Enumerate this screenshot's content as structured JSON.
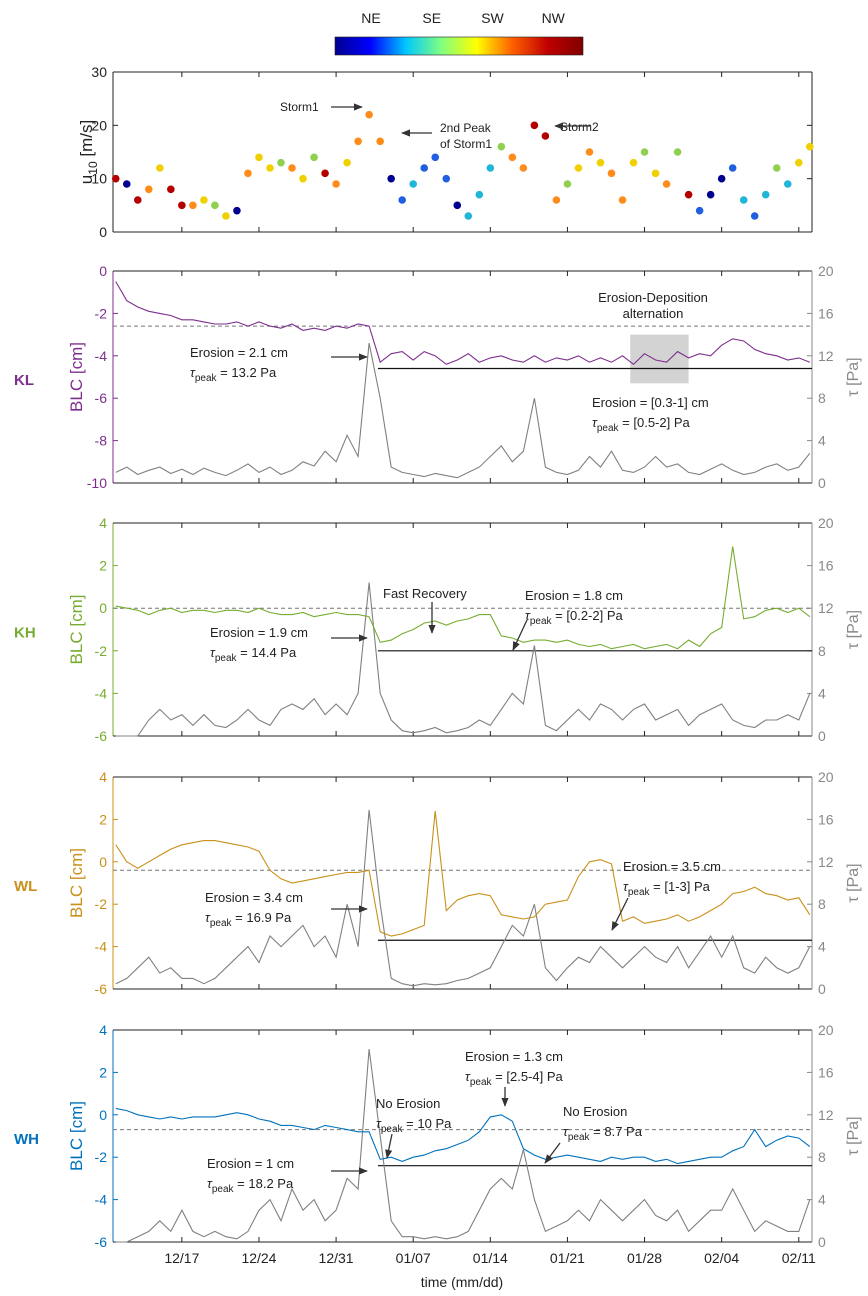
{
  "chart_data": {
    "type": "multi-panel",
    "colorbar": {
      "labels": [
        "NE",
        "SE",
        "SW",
        "NW"
      ],
      "colors": [
        "#00008f",
        "#0000ff",
        "#00c8ff",
        "#80ff80",
        "#ffff00",
        "#ff6000",
        "#c00000",
        "#800000"
      ]
    },
    "x": [
      11,
      12,
      13,
      14,
      15,
      16,
      17,
      18,
      19,
      20,
      21,
      22,
      23,
      24,
      25,
      26,
      27,
      28,
      29,
      30,
      31,
      32,
      33,
      34,
      35,
      36,
      37,
      38,
      39,
      40,
      41,
      42,
      43,
      44,
      45,
      46,
      47,
      48,
      49,
      50,
      51,
      52,
      53,
      54,
      55,
      56,
      57,
      58,
      59,
      60,
      61,
      62,
      63,
      64,
      65,
      66,
      67,
      68,
      69,
      70,
      71,
      72,
      73,
      74
    ],
    "xlim": [
      10.75,
      74.2
    ],
    "xticks": [
      {
        "value": 17,
        "label": "12/17"
      },
      {
        "value": 24,
        "label": "12/24"
      },
      {
        "value": 31,
        "label": "12/31"
      },
      {
        "value": 38,
        "label": "01/07"
      },
      {
        "value": 45,
        "label": "01/14"
      },
      {
        "value": 52,
        "label": "01/21"
      },
      {
        "value": 59,
        "label": "01/28"
      },
      {
        "value": 66,
        "label": "02/04"
      },
      {
        "value": 73,
        "label": "02/11"
      }
    ],
    "xlabel": "time (mm/dd)",
    "panels": [
      {
        "type": "scatter",
        "ylabel": "u",
        "ylabel_sub": "10",
        "ylabel_unit": " [m/s]",
        "ylim": [
          0,
          30
        ],
        "yticks": [
          0,
          10,
          20,
          30
        ],
        "values": [
          10,
          9,
          6,
          8,
          12,
          8,
          5,
          5,
          6,
          5,
          3,
          4,
          11,
          14,
          12,
          13,
          12,
          10,
          14,
          11,
          9,
          13,
          17,
          22,
          17,
          10,
          6,
          9,
          12,
          14,
          10,
          5,
          3,
          7,
          12,
          16,
          14,
          12,
          20,
          18,
          6,
          9,
          12,
          15,
          13,
          11,
          6,
          13,
          15,
          11,
          9,
          15,
          7,
          4,
          7,
          10,
          12,
          6,
          3,
          7,
          12,
          9,
          13,
          16
        ],
        "colors": [
          "#b40000",
          "#000090",
          "#b40000",
          "#ff8c1a",
          "#f0d000",
          "#b40000",
          "#b40000",
          "#ff8c1a",
          "#f0d000",
          "#8fd14f",
          "#f0d000",
          "#000090",
          "#ff8c1a",
          "#f0d000",
          "#f0d000",
          "#8fd14f",
          "#ff8c1a",
          "#f0d000",
          "#8fd14f",
          "#b40000",
          "#ff8c1a",
          "#f0d000",
          "#ff8c1a",
          "#ff8c1a",
          "#ff8c1a",
          "#000090",
          "#2060e0",
          "#20b6d8",
          "#2060e0",
          "#2060e0",
          "#2060e0",
          "#000090",
          "#20b6d8",
          "#20b6d8",
          "#20b6d8",
          "#8fd14f",
          "#ff8c1a",
          "#ff8c1a",
          "#b40000",
          "#b40000",
          "#ff8c1a",
          "#8fd14f",
          "#f0d000",
          "#ff8c1a",
          "#f0d000",
          "#ff8c1a",
          "#ff8c1a",
          "#f0d000",
          "#8fd14f",
          "#f0d000",
          "#ff8c1a",
          "#8fd14f",
          "#b40000",
          "#2060e0",
          "#000090",
          "#000090",
          "#2060e0",
          "#20b6d8",
          "#2060e0",
          "#20b6d8",
          "#8fd14f",
          "#20b6d8",
          "#f0d000",
          "#f0d000"
        ],
        "annotations": [
          {
            "lines": [
              "Storm1"
            ]
          },
          {
            "lines": [
              "2nd Peak",
              "of Storm1"
            ]
          },
          {
            "lines": [
              "Storm2"
            ]
          }
        ]
      },
      {
        "type": "line",
        "label": "KL",
        "color": "#7e2f8e",
        "ylabel": "BLC [cm]",
        "ylim": [
          -10,
          0
        ],
        "yticks": [
          -10,
          -8,
          -6,
          -4,
          -2,
          0
        ],
        "y2label": "τ [Pa]",
        "y2lim": [
          0,
          20
        ],
        "y2ticks": [
          0,
          4,
          8,
          12,
          16,
          20
        ],
        "ref_dashed": -2.6,
        "ref_solid": -4.6,
        "ref_solid_start": 34.8,
        "highlight": {
          "xlim": [
            57.7,
            63
          ],
          "ylim": [
            -5.3,
            -3
          ]
        },
        "series": [
          {
            "color": "#7e2f8e",
            "values": [
              -0.5,
              -1.4,
              -1.7,
              -1.9,
              -2.0,
              -2.1,
              -2.3,
              -2.3,
              -2.4,
              -2.5,
              -2.5,
              -2.4,
              -2.6,
              -2.4,
              -2.6,
              -2.7,
              -2.5,
              -2.8,
              -2.7,
              -2.8,
              -2.6,
              -2.7,
              -2.5,
              -2.6,
              -4.3,
              -3.9,
              -3.8,
              -4.2,
              -3.8,
              -4.0,
              -4.4,
              -4.2,
              -3.9,
              -4.3,
              -4.1,
              -4.0,
              -4.2,
              -4.3,
              -4.0,
              -4.3,
              -4.1,
              -4.2,
              -4.0,
              -4.3,
              -4.1,
              -4.3,
              -4.0,
              -4.4,
              -3.9,
              -4.2,
              -4.3,
              -3.8,
              -4.1,
              -3.9,
              -4.0,
              -3.5,
              -3.2,
              -3.3,
              -3.7,
              -3.9,
              -4.0,
              -4.2,
              -4.1,
              -4.3
            ]
          },
          {
            "color": "#808080",
            "axis": "y2",
            "values": [
              1,
              1.5,
              0.8,
              1.2,
              1.5,
              0.9,
              1.3,
              0.8,
              1.4,
              1.0,
              0.7,
              1.2,
              1.8,
              1.0,
              1.5,
              0.8,
              1.2,
              2.0,
              1.6,
              3.0,
              2.0,
              4.5,
              2.5,
              13.2,
              8.0,
              1.5,
              1.0,
              0.8,
              0.6,
              0.9,
              0.7,
              0.5,
              1.0,
              1.5,
              2.5,
              3.5,
              2.0,
              3.0,
              8.0,
              1.5,
              1.0,
              0.8,
              1.2,
              2.5,
              1.5,
              3.0,
              1.2,
              1.0,
              1.5,
              2.5,
              1.5,
              1.8,
              1.0,
              0.8,
              1.3,
              1.8,
              1.2,
              0.8,
              1.0,
              1.5,
              1.8,
              1.2,
              1.5,
              2.8
            ]
          }
        ],
        "annotations": [
          {
            "lines": [
              "Erosion = 2.1 cm"
            ],
            "tau": "τ",
            "sub": "peak",
            "rest": " = 13.2 Pa"
          },
          {
            "lines": [
              "Erosion-Deposition",
              "alternation"
            ]
          },
          {
            "lines": [
              "Erosion = [0.3-1] cm"
            ],
            "tau": "τ",
            "sub": "peak",
            "rest": " = [0.5-2] Pa"
          }
        ]
      },
      {
        "type": "line",
        "label": "KH",
        "color": "#77ac30",
        "ylabel": "BLC [cm]",
        "ylim": [
          -6,
          4
        ],
        "yticks": [
          -6,
          -4,
          -2,
          0,
          2,
          4
        ],
        "y2label": "τ [Pa]",
        "y2lim": [
          0,
          20
        ],
        "y2ticks": [
          0,
          4,
          8,
          12,
          16,
          20
        ],
        "ref_dashed": 0,
        "ref_solid": -2,
        "ref_solid_start": 34.8,
        "series": [
          {
            "color": "#77ac30",
            "values": [
              0.1,
              0.0,
              -0.1,
              -0.3,
              -0.1,
              0.0,
              -0.2,
              -0.1,
              -0.1,
              -0.2,
              -0.1,
              -0.1,
              -0.2,
              0.0,
              -0.2,
              -0.3,
              -0.3,
              -0.2,
              -0.4,
              -0.3,
              -0.2,
              -0.3,
              -0.3,
              -0.4,
              -1.6,
              -1.5,
              -1.2,
              -1.0,
              -0.7,
              -0.6,
              -0.8,
              -0.6,
              -0.5,
              -0.3,
              -0.3,
              -1.3,
              -1.4,
              -1.6,
              -1.5,
              -1.5,
              -1.6,
              -1.5,
              -1.7,
              -1.8,
              -1.7,
              -1.9,
              -1.8,
              -1.7,
              -1.9,
              -1.8,
              -1.7,
              -1.9,
              -1.5,
              -1.8,
              -1.2,
              -0.9,
              2.9,
              -0.5,
              -0.4,
              -0.1,
              0.0,
              -0.2,
              0.0,
              -0.4
            ]
          },
          {
            "color": "#808080",
            "axis": "y2",
            "values": [
              0,
              0,
              0,
              1.5,
              2.5,
              1.5,
              2,
              1,
              2,
              1,
              0.8,
              1.5,
              2.5,
              1.5,
              1,
              2.5,
              3,
              2.5,
              3.5,
              2,
              3,
              2,
              4,
              14.4,
              4,
              1.5,
              0.5,
              0.3,
              0.5,
              0.8,
              0.3,
              0.5,
              0.8,
              1.5,
              1,
              2.5,
              4,
              3,
              8.5,
              1,
              0.5,
              1.5,
              2.5,
              1.5,
              3,
              2.5,
              1.5,
              2.5,
              3,
              1.5,
              2,
              2.5,
              1,
              2,
              2.5,
              3,
              1.5,
              1,
              0.8,
              1.5,
              1.5,
              2,
              1.5,
              4
            ]
          }
        ],
        "annotations": [
          {
            "lines": [
              "Fast Recovery"
            ]
          },
          {
            "lines": [
              "Erosion = 1.8 cm"
            ],
            "tau": "τ",
            "sub": "peak",
            "rest": " = [0.2-2] Pa"
          },
          {
            "lines": [
              "Erosion = 1.9 cm"
            ],
            "tau": "τ",
            "sub": "peak",
            "rest": " = 14.4 Pa"
          }
        ]
      },
      {
        "type": "line",
        "label": "WL",
        "color": "#c9901a",
        "ylabel": "BLC [cm]",
        "ylim": [
          -6,
          4
        ],
        "yticks": [
          -6,
          -4,
          -2,
          0,
          2,
          4
        ],
        "y2label": "τ [Pa]",
        "y2lim": [
          0,
          20
        ],
        "y2ticks": [
          0,
          4,
          8,
          12,
          16,
          20
        ],
        "ref_dashed": -0.4,
        "ref_solid": -3.7,
        "ref_solid_start": 34.8,
        "series": [
          {
            "color": "#c9901a",
            "values": [
              0.8,
              0.0,
              -0.3,
              0.0,
              0.3,
              0.6,
              0.8,
              0.9,
              1.0,
              1.0,
              0.9,
              0.8,
              0.7,
              0.5,
              -0.4,
              -0.8,
              -1.0,
              -0.9,
              -0.8,
              -0.7,
              -0.6,
              -0.5,
              -0.5,
              -0.4,
              -3.3,
              -3.5,
              -3.4,
              -3.2,
              -3.0,
              2.4,
              -2.3,
              -1.8,
              -1.6,
              -1.5,
              -1.6,
              -2.5,
              -2.6,
              -2.7,
              -2.6,
              -2.0,
              -1.9,
              -1.8,
              -0.7,
              0.0,
              0.1,
              -0.1,
              -2.8,
              -2.6,
              -2.9,
              -2.8,
              -2.7,
              -2.5,
              -2.8,
              -2.6,
              -2.3,
              -2.0,
              -1.5,
              -1.4,
              -1.2,
              -1.5,
              -1.6,
              -1.8,
              -1.7,
              -2.5
            ]
          },
          {
            "color": "#808080",
            "axis": "y2",
            "values": [
              0.5,
              1,
              2,
              3,
              1.5,
              2,
              1,
              1,
              0.5,
              1,
              2,
              3,
              4,
              2.5,
              5,
              4,
              5,
              6,
              4,
              5,
              3,
              8,
              4,
              16.9,
              8,
              1,
              0.5,
              0.3,
              0.5,
              0.4,
              0.5,
              0.8,
              1,
              1.5,
              2,
              4,
              6,
              5,
              8,
              2,
              0.8,
              2,
              3,
              2.5,
              4,
              3,
              2,
              3,
              4,
              3,
              2.5,
              4,
              2,
              3.5,
              5,
              3,
              5,
              2,
              1.5,
              3,
              2,
              1.5,
              2,
              4
            ]
          }
        ],
        "annotations": [
          {
            "lines": [
              "Erosion = 3.5 cm"
            ],
            "tau": "τ",
            "sub": "peak",
            "rest": " = [1-3] Pa"
          },
          {
            "lines": [
              "Erosion = 3.4 cm"
            ],
            "tau": "τ",
            "sub": "peak",
            "rest": " = 16.9 Pa"
          }
        ]
      },
      {
        "type": "line",
        "label": "WH",
        "color": "#0072bd",
        "ylabel": "BLC [cm]",
        "ylim": [
          -6,
          4
        ],
        "yticks": [
          -6,
          -4,
          -2,
          0,
          2,
          4
        ],
        "y2label": "τ [Pa]",
        "y2lim": [
          0,
          20
        ],
        "y2ticks": [
          0,
          4,
          8,
          12,
          16,
          20
        ],
        "ref_dashed": -0.7,
        "ref_solid": -2.4,
        "ref_solid_start": 34.8,
        "series": [
          {
            "color": "#0072bd",
            "values": [
              0.3,
              0.2,
              0.0,
              -0.1,
              -0.2,
              -0.1,
              -0.2,
              -0.1,
              -0.1,
              -0.1,
              0.0,
              0.1,
              0.0,
              -0.2,
              -0.3,
              -0.5,
              -0.5,
              -0.6,
              -0.7,
              -0.5,
              -0.6,
              -0.7,
              -0.8,
              -0.8,
              -2.1,
              -2.0,
              -2.2,
              -2.0,
              -1.9,
              -1.7,
              -1.6,
              -1.4,
              -1.2,
              -0.8,
              -0.1,
              0.0,
              -0.3,
              -1.6,
              -1.9,
              -2.1,
              -2.0,
              -1.9,
              -2.0,
              -2.1,
              -2.2,
              -2.0,
              -2.1,
              -2.0,
              -2.0,
              -2.2,
              -2.1,
              -2.3,
              -2.2,
              -2.1,
              -2.0,
              -2.0,
              -1.7,
              -1.5,
              -0.7,
              -1.5,
              -1.2,
              -1.0,
              -1.1,
              -1.5
            ]
          },
          {
            "color": "#808080",
            "axis": "y2",
            "values": [
              0,
              0,
              0.5,
              1,
              2,
              1,
              3,
              1,
              0.5,
              1,
              0.5,
              0.3,
              1,
              3,
              4,
              2,
              5,
              3,
              4,
              2,
              3,
              6,
              5,
              18.2,
              10,
              2,
              0.5,
              0.5,
              0.3,
              0.5,
              0.3,
              0.5,
              1,
              3,
              5,
              6,
              5,
              8.7,
              4,
              1,
              1.5,
              2,
              3,
              2,
              4,
              3,
              2,
              3,
              4,
              2.5,
              2,
              3,
              1,
              2,
              3,
              3,
              5,
              3,
              1,
              2,
              1.5,
              1,
              1,
              4
            ]
          }
        ],
        "annotations": [
          {
            "lines": [
              "Erosion = 1.3 cm"
            ],
            "tau": "τ",
            "sub": "peak",
            "rest": " = [2.5-4] Pa"
          },
          {
            "lines": [
              "No Erosion"
            ],
            "tau": "τ",
            "sub": "peak",
            "rest": " = 10 Pa"
          },
          {
            "lines": [
              "No Erosion"
            ],
            "tau": "τ",
            "sub": "peak",
            "rest": " = 8.7 Pa"
          },
          {
            "lines": [
              "Erosion = 1 cm"
            ],
            "tau": "τ",
            "sub": "peak",
            "rest": " = 18.2 Pa"
          }
        ]
      }
    ]
  }
}
